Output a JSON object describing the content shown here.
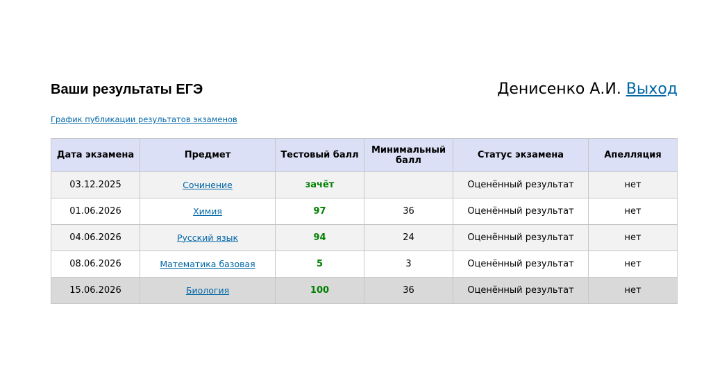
{
  "header": {
    "title": "Ваши результаты ЕГЭ",
    "user": "Денисенко А.И.",
    "logout": "Выход",
    "schedule_link": "График публикации результатов экзаменов"
  },
  "table": {
    "columns": [
      "Дата экзамена",
      "Предмет",
      "Тестовый балл",
      "Минимальный балл",
      "Статус экзамена",
      "Апелляция"
    ],
    "rows": [
      [
        "03.12.2025",
        "Сочинение",
        "зачёт",
        null,
        "Оценённый результат",
        "нет"
      ],
      [
        "01.06.2026",
        "Химия",
        97,
        36,
        "Оценённый результат",
        "нет"
      ],
      [
        "04.06.2026",
        "Русский язык",
        94,
        24,
        "Оценённый результат",
        "нет"
      ],
      [
        "08.06.2026",
        "Математика базовая",
        5,
        3,
        "Оценённый результат",
        "нет"
      ],
      [
        "15.06.2026",
        "Биология",
        100,
        36,
        "Оценённый результат",
        "нет"
      ]
    ]
  }
}
